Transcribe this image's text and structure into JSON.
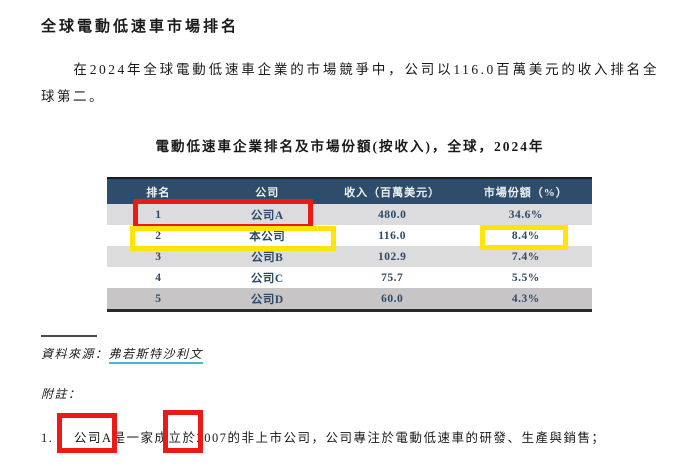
{
  "page": {
    "heading": "全球電動低速車市場排名",
    "paragraph": "在2024年全球電動低速車企業的市場競爭中，公司以116.0百萬美元的收入排名全球第二。",
    "table_title": "電動低速車企業排名及市場份額(按收入)，全球，2024年"
  },
  "table": {
    "headers": [
      "排名",
      "公司",
      "收入（百萬美元）",
      "市場份額（%）"
    ],
    "rows": [
      {
        "rank": "1",
        "company": "公司A",
        "revenue": "480.0",
        "share": "34.6%"
      },
      {
        "rank": "2",
        "company": "本公司",
        "revenue": "116.0",
        "share": "8.4%"
      },
      {
        "rank": "3",
        "company": "公司B",
        "revenue": "102.9",
        "share": "7.4%"
      },
      {
        "rank": "4",
        "company": "公司C",
        "revenue": "75.7",
        "share": "5.5%"
      },
      {
        "rank": "5",
        "company": "公司D",
        "revenue": "60.0",
        "share": "4.3%"
      }
    ]
  },
  "footer": {
    "source_label": "資料來源：",
    "source_value": "弗若斯特沙利文",
    "notes_label": "附註：",
    "note1_number": "1.",
    "note1_text": "公司A是一家成立於2007的非上市公司，公司專注於電動低速車的研發、生產與銷售；"
  },
  "colors": {
    "table_header_bg": "#2e4d6c",
    "table_row_alt": "#dcdbdd",
    "table_row_last": "#c8c5c7",
    "table_text": "#2c4a68",
    "annotation_red": "#ec1a17",
    "annotation_yellow": "#ffe40a",
    "source_underline": "#45b8c9"
  }
}
